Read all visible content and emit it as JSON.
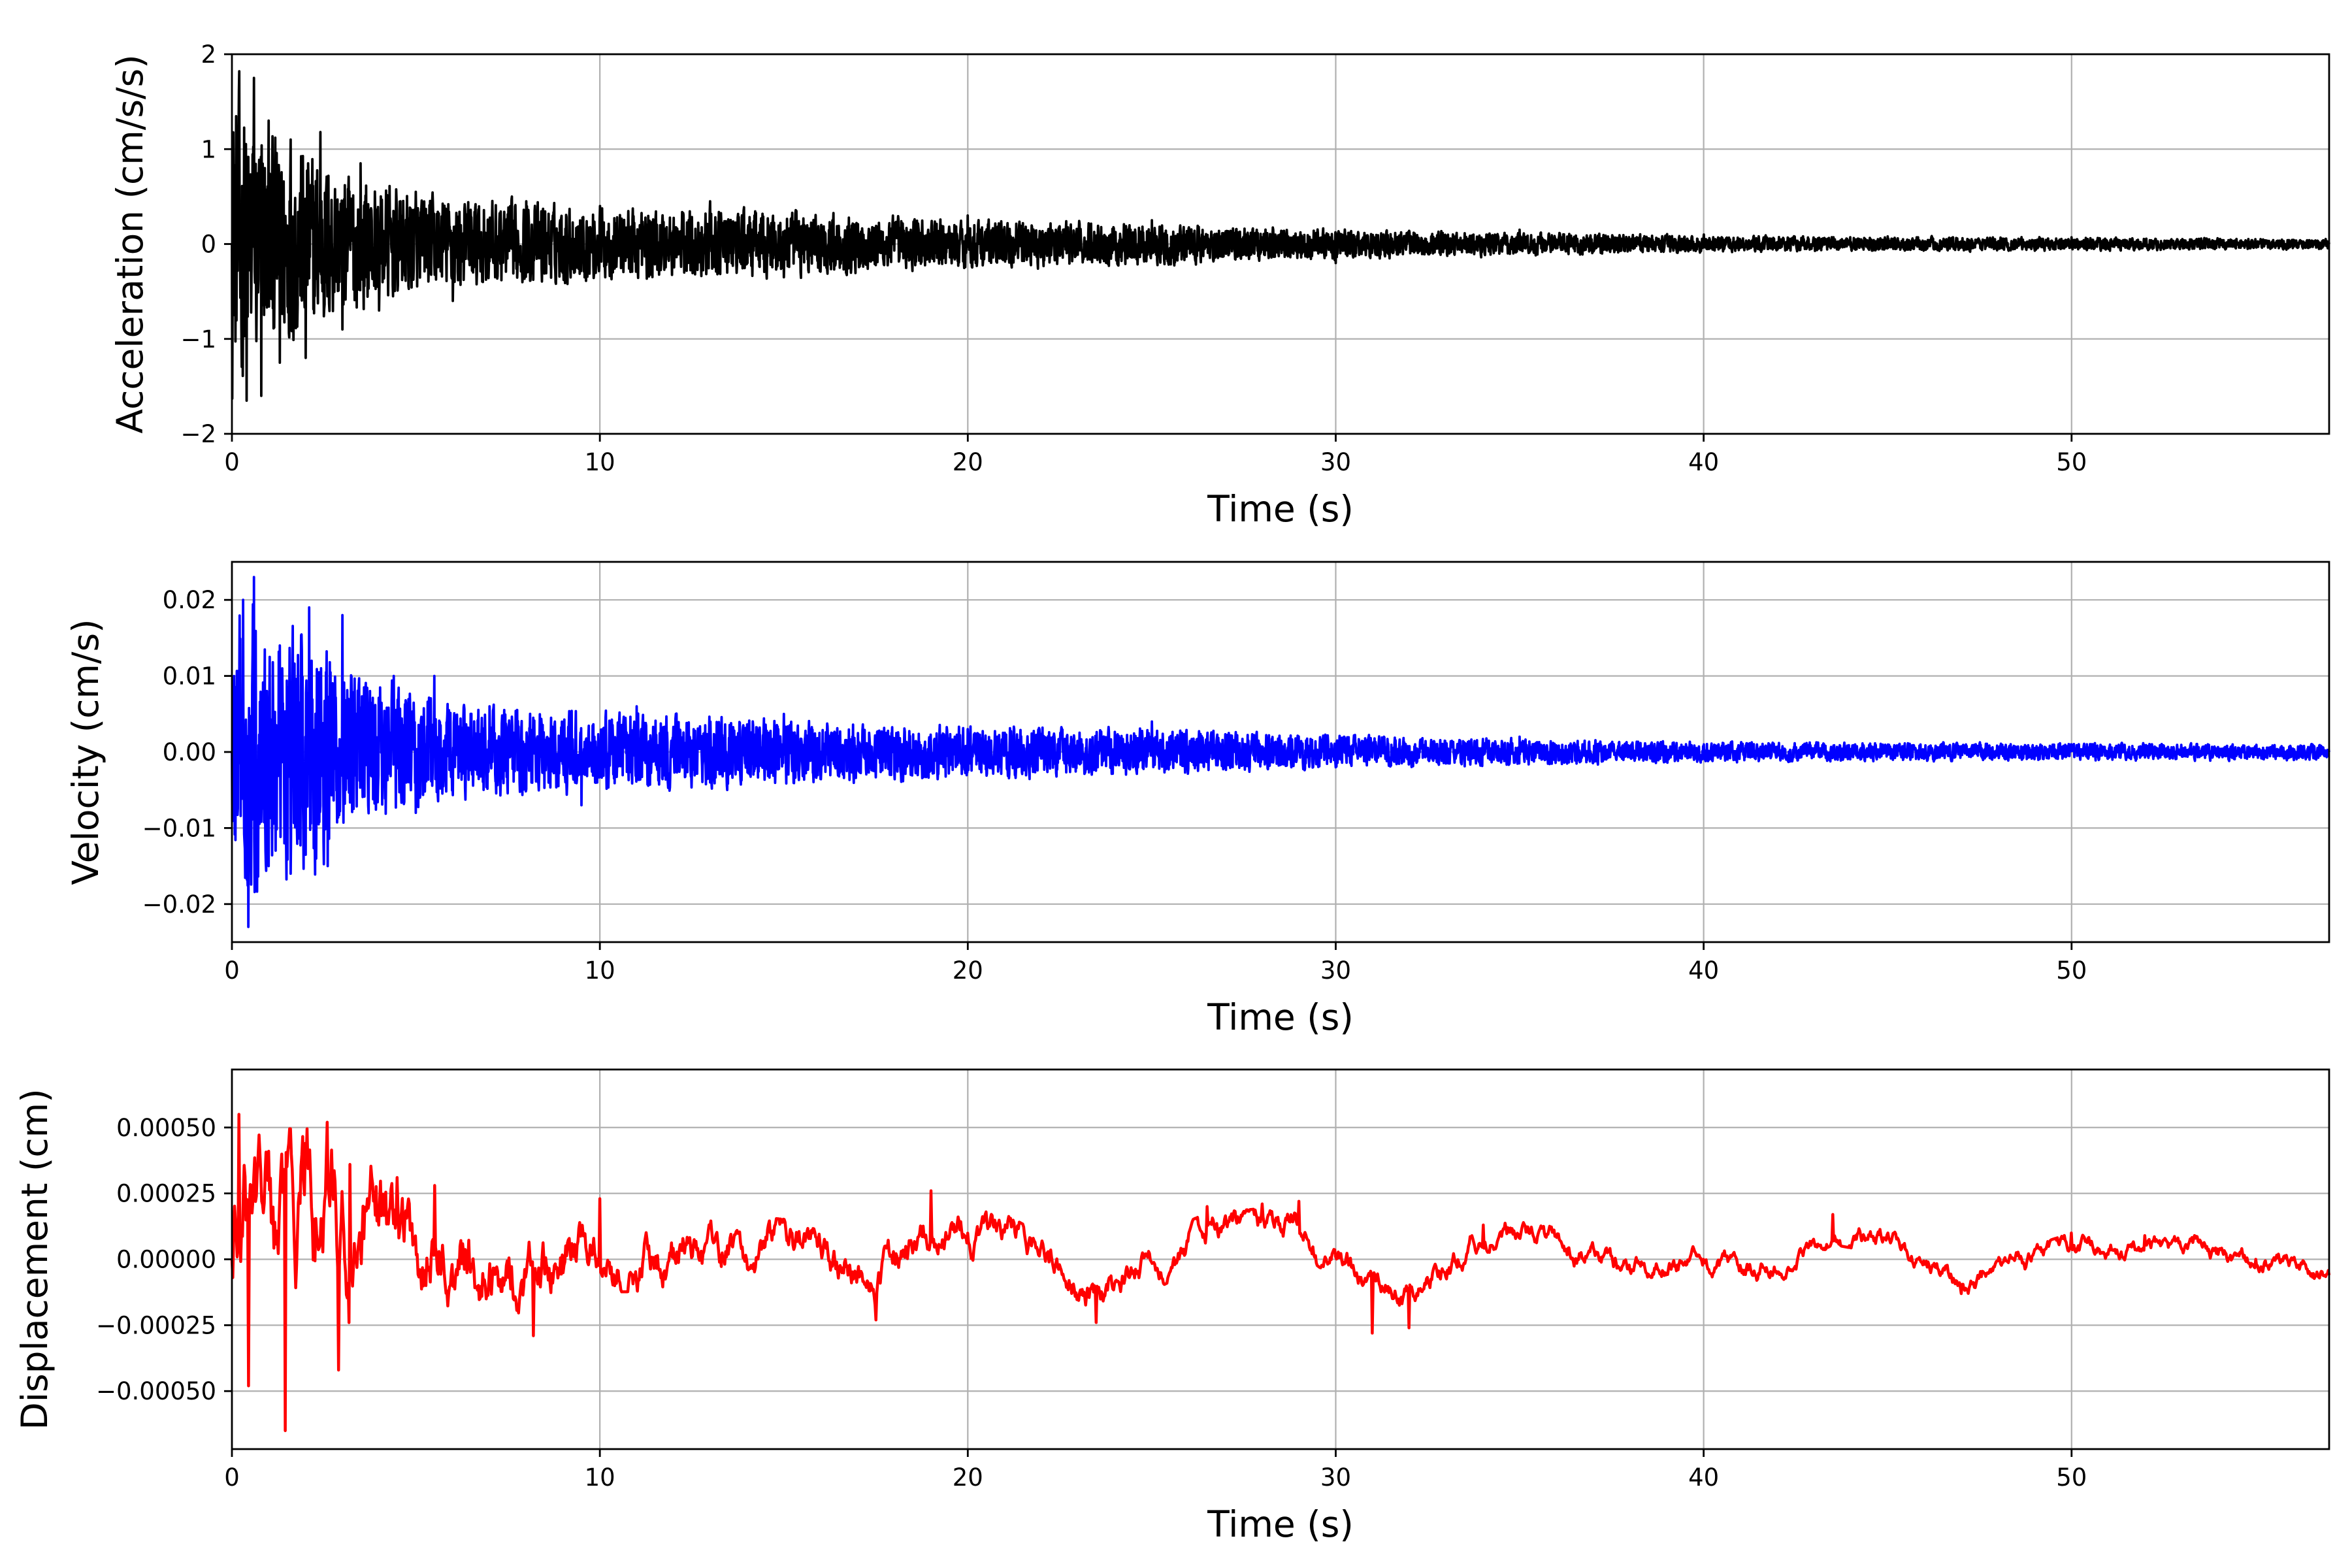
{
  "chart_data": [
    {
      "type": "line",
      "xlabel": "Time (s)",
      "ylabel": "Acceleration (cm/s/s)",
      "xlim": [
        0,
        57
      ],
      "ylim": [
        -2.0,
        2.0
      ],
      "xticks": [
        0,
        10,
        20,
        30,
        40,
        50
      ],
      "xtick_labels": [
        "0",
        "10",
        "20",
        "30",
        "40",
        "50"
      ],
      "yticks": [
        -2,
        -1,
        0,
        1,
        2
      ],
      "ytick_labels": [
        "−2",
        "−1",
        "0",
        "1",
        "2"
      ],
      "grid": true,
      "color": "#000000",
      "envelope": [
        [
          0,
          1.8
        ],
        [
          0.4,
          1.75
        ],
        [
          1,
          1.3
        ],
        [
          2,
          1.2
        ],
        [
          3,
          0.9
        ],
        [
          5,
          0.6
        ],
        [
          10,
          0.45
        ],
        [
          15,
          0.4
        ],
        [
          20,
          0.3
        ],
        [
          25,
          0.25
        ],
        [
          30,
          0.18
        ],
        [
          40,
          0.1
        ],
        [
          50,
          0.08
        ],
        [
          57,
          0.06
        ]
      ],
      "series": [
        {
          "x": [
            0,
            0.2,
            0.4,
            0.6,
            0.8,
            1.0,
            1.3,
            1.6,
            2.0,
            2.4,
            3.0,
            3.5,
            4.0,
            5.0,
            6.0,
            8.0,
            10.0,
            13.0,
            15.0,
            20.0,
            25.0,
            30.0,
            35.0,
            40.0,
            45.0,
            50.0,
            55.0,
            57.0
          ],
          "y": [
            0.0,
            1.82,
            -1.65,
            1.75,
            -1.6,
            1.3,
            -1.25,
            1.1,
            -1.2,
            1.18,
            -0.9,
            0.85,
            -0.7,
            0.55,
            -0.6,
            0.45,
            0.4,
            0.45,
            -0.35,
            0.3,
            0.25,
            -0.2,
            0.15,
            0.1,
            0.08,
            0.07,
            0.05,
            0.0
          ]
        }
      ]
    },
    {
      "type": "line",
      "xlabel": "Time (s)",
      "ylabel": "Velocity (cm/s)",
      "xlim": [
        0,
        57
      ],
      "ylim": [
        -0.025,
        0.025
      ],
      "xticks": [
        0,
        10,
        20,
        30,
        40,
        50
      ],
      "xtick_labels": [
        "0",
        "10",
        "20",
        "30",
        "40",
        "50"
      ],
      "yticks": [
        -0.02,
        -0.01,
        0.0,
        0.01,
        0.02
      ],
      "ytick_labels": [
        "−0.02",
        "−0.01",
        "0.00",
        "0.01",
        "0.02"
      ],
      "grid": true,
      "color": "#0000ff",
      "envelope": [
        [
          0,
          0.02
        ],
        [
          0.45,
          0.023
        ],
        [
          1,
          0.018
        ],
        [
          2,
          0.019
        ],
        [
          2.6,
          0.017
        ],
        [
          3,
          0.012
        ],
        [
          5,
          0.01
        ],
        [
          6,
          0.007
        ],
        [
          10,
          0.006
        ],
        [
          15,
          0.005
        ],
        [
          20,
          0.004
        ],
        [
          25,
          0.0035
        ],
        [
          30,
          0.0025
        ],
        [
          40,
          0.0015
        ],
        [
          50,
          0.0013
        ],
        [
          57,
          0.0012
        ]
      ],
      "series": [
        {
          "x": [
            0,
            0.3,
            0.45,
            0.6,
            1.0,
            1.3,
            1.6,
            2.1,
            2.6,
            3.0,
            4.4,
            5.0,
            5.5,
            7.0,
            9.5,
            11.0,
            13.0,
            15.0,
            20.0,
            25.0,
            30.0,
            35.0,
            40.0,
            50.0,
            57.0
          ],
          "y": [
            0.0,
            0.02,
            -0.023,
            0.023,
            -0.015,
            0.014,
            -0.016,
            0.019,
            -0.015,
            0.018,
            0.01,
            -0.008,
            0.01,
            0.006,
            -0.007,
            0.006,
            -0.004,
            0.005,
            0.003,
            0.004,
            -0.002,
            0.002,
            0.001,
            0.001,
            0.0
          ]
        }
      ]
    },
    {
      "type": "line",
      "xlabel": "Time (s)",
      "ylabel": "Displacement (cm)",
      "xlim": [
        0,
        57
      ],
      "ylim": [
        -0.00072,
        0.00072
      ],
      "xticks": [
        0,
        10,
        20,
        30,
        40,
        50
      ],
      "xtick_labels": [
        "0",
        "10",
        "20",
        "30",
        "40",
        "50"
      ],
      "yticks": [
        -0.0005,
        -0.00025,
        0.0,
        0.00025,
        0.0005
      ],
      "ytick_labels": [
        "−0.00050",
        "−0.00025",
        "0.00000",
        "0.00025",
        "0.00050"
      ],
      "grid": true,
      "color": "#ff0000",
      "envelope": [
        [
          0,
          0.0005
        ],
        [
          1,
          0.00045
        ],
        [
          2,
          0.00045
        ],
        [
          3,
          0.00045
        ],
        [
          4,
          0.0003
        ],
        [
          6,
          0.00025
        ],
        [
          8,
          0.0002
        ],
        [
          10,
          0.00015
        ],
        [
          15,
          0.00012
        ],
        [
          20,
          0.0001
        ],
        [
          30,
          8e-05
        ],
        [
          40,
          6e-05
        ],
        [
          57,
          5e-05
        ]
      ],
      "drift": [
        [
          0,
          0
        ],
        [
          5,
          0
        ],
        [
          10,
          4e-05
        ],
        [
          15,
          2e-05
        ],
        [
          17.5,
          -8e-05
        ],
        [
          19,
          0.00012
        ],
        [
          20.5,
          0.0001
        ],
        [
          23.5,
          -0.00012
        ],
        [
          26.5,
          8e-05
        ],
        [
          28,
          0.0001
        ],
        [
          29,
          0.00012
        ],
        [
          31,
          -0.0001
        ],
        [
          32,
          -0.00012
        ],
        [
          34,
          0.0001
        ],
        [
          36,
          5e-05
        ],
        [
          38,
          -5e-05
        ],
        [
          40,
          0.0
        ],
        [
          42,
          -3e-05
        ],
        [
          43.5,
          0.00012
        ],
        [
          45,
          8e-05
        ],
        [
          47,
          -0.0001
        ],
        [
          50,
          4e-05
        ],
        [
          52,
          6e-05
        ],
        [
          55,
          0.0
        ],
        [
          57,
          -5e-05
        ]
      ],
      "series": [
        {
          "x": [
            0,
            0.2,
            0.45,
            1.0,
            1.45,
            2.0,
            2.6,
            2.9,
            3.2,
            4.5,
            5.5,
            8.2,
            10.0,
            17.5,
            19.0,
            20.5,
            23.5,
            26.5,
            28.0,
            29.0,
            31.0,
            32.0,
            34.0,
            40.0,
            43.5,
            45.0,
            47.0,
            50.0,
            52.0,
            55.0,
            57.0
          ],
          "y": [
            0.0,
            0.00055,
            -0.00048,
            0.00041,
            -0.00065,
            0.00044,
            0.00052,
            -0.00042,
            0.00036,
            0.00031,
            0.00028,
            -0.00029,
            0.00023,
            -0.00023,
            0.00026,
            0.00018,
            -0.00024,
            0.0002,
            0.00021,
            0.00022,
            -0.00028,
            -0.00026,
            0.00013,
            0.0,
            0.00017,
            0.0001,
            -0.00013,
            0.0001,
            9e-05,
            0.0,
            -6e-05
          ]
        }
      ]
    }
  ]
}
